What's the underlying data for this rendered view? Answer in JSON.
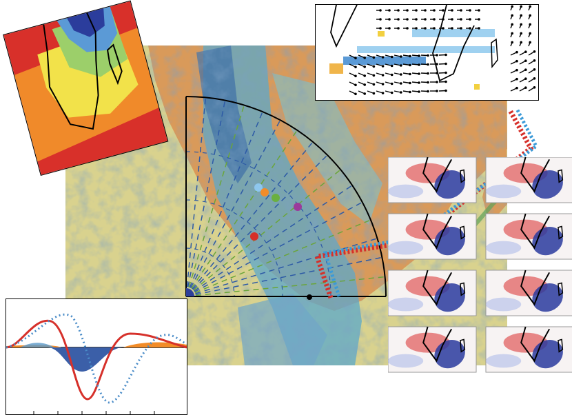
{
  "figure": {
    "colors": {
      "background": "#ffffff",
      "sand": "#d9d28e",
      "land": "#d99a5a",
      "cloud": "#5aa8c9",
      "cloud_dark": "#3f6fa6",
      "coast": "#000000",
      "dashed_blue": "#2d5aa6",
      "dashed_green": "#6aa53a",
      "red": "#d6302a",
      "light_blue": "#3b9ad8",
      "dot_orange": "#f28c28",
      "dot_green": "#6ab040",
      "dot_purple": "#9b3a9b",
      "dot_lightblue": "#8ec7ee",
      "anomaly_red": "#c8262b",
      "anomaly_blue": "#1c2a8c"
    },
    "panels": {
      "background_map": "satellite-composite-map",
      "heat_inset": "heat-map-inset",
      "wind_inset": "wind-vector-inset",
      "anomaly_grid": "anomaly-map-grid",
      "profile_chart": "profile-line-chart"
    },
    "anomaly_grid_rows": 4,
    "anomaly_grid_cols": 2,
    "markers": [
      {
        "name": "light-blue-dot",
        "color": "#8ec7ee"
      },
      {
        "name": "orange-dot",
        "color": "#f28c28"
      },
      {
        "name": "green-dot",
        "color": "#6ab040"
      },
      {
        "name": "purple-dot",
        "color": "#9b3a9b"
      },
      {
        "name": "red-dot",
        "color": "#d6302a"
      },
      {
        "name": "black-dot",
        "color": "#000000"
      }
    ]
  }
}
